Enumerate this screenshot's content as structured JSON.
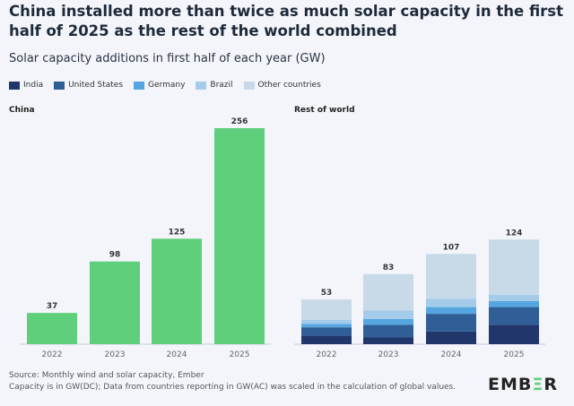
{
  "title": "China installed more than twice as much solar capacity in the first half of 2025 as the rest of the world combined",
  "subtitle": "Solar capacity additions in first half of each year (GW)",
  "legend": [
    {
      "label": "India",
      "color": "#21366b"
    },
    {
      "label": "United States",
      "color": "#2f5f96"
    },
    {
      "label": "Germany",
      "color": "#55a6e0"
    },
    {
      "label": "Brazil",
      "color": "#a5cbea"
    },
    {
      "label": "Other countries",
      "color": "#c8dae8"
    }
  ],
  "chart_data": [
    {
      "type": "bar",
      "title": "China",
      "categories": [
        "2022",
        "2023",
        "2024",
        "2025"
      ],
      "values": [
        37,
        98,
        125,
        256
      ],
      "color": "#5fcf7b",
      "ylim": [
        0,
        256
      ],
      "grid": false
    },
    {
      "type": "bar",
      "stacked": true,
      "title": "Rest of world",
      "categories": [
        "2022",
        "2023",
        "2024",
        "2025"
      ],
      "totals": [
        53,
        83,
        107,
        124
      ],
      "ylim": [
        0,
        256
      ],
      "grid": false,
      "series": [
        {
          "name": "India",
          "values": [
            10,
            8,
            15,
            23
          ]
        },
        {
          "name": "United States",
          "values": [
            10,
            15,
            21,
            21
          ]
        },
        {
          "name": "Germany",
          "values": [
            4,
            7,
            8,
            7
          ]
        },
        {
          "name": "Brazil",
          "values": [
            5,
            10,
            10,
            7.5
          ]
        },
        {
          "name": "Other countries",
          "values": [
            24,
            43,
            53,
            65.5
          ]
        }
      ]
    }
  ],
  "footer": {
    "source": "Source: Monthly wind and solar capacity, Ember",
    "note": "Capacity is in GW(DC); Data from countries reporting in GW(AC) was scaled in the calculation of global values."
  },
  "logo": "EMBER"
}
